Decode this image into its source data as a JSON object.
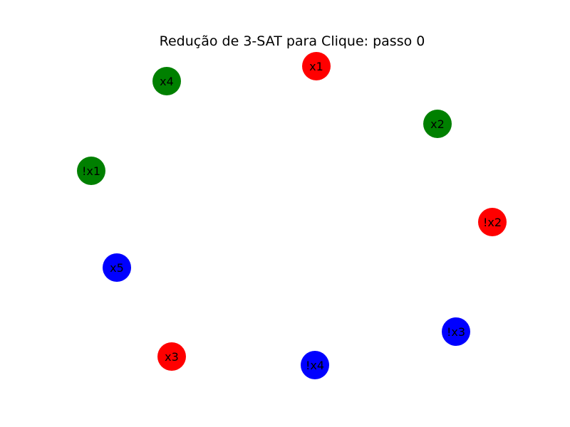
{
  "title": "Redução de 3-SAT para Clique: passo 0",
  "colors": {
    "red": "#ff0000",
    "green": "#008000",
    "blue": "#0000ff"
  },
  "nodes": [
    {
      "id": "x1",
      "label": "x1",
      "color": "red"
    },
    {
      "id": "x2",
      "label": "x2",
      "color": "green"
    },
    {
      "id": "!x2",
      "label": "!x2",
      "color": "red"
    },
    {
      "id": "!x3",
      "label": "!x3",
      "color": "blue"
    },
    {
      "id": "!x4",
      "label": "!x4",
      "color": "blue"
    },
    {
      "id": "x3",
      "label": "x3",
      "color": "red"
    },
    {
      "id": "x5",
      "label": "x5",
      "color": "blue"
    },
    {
      "id": "!x1",
      "label": "!x1",
      "color": "green"
    },
    {
      "id": "x4",
      "label": "x4",
      "color": "green"
    }
  ],
  "edges": []
}
